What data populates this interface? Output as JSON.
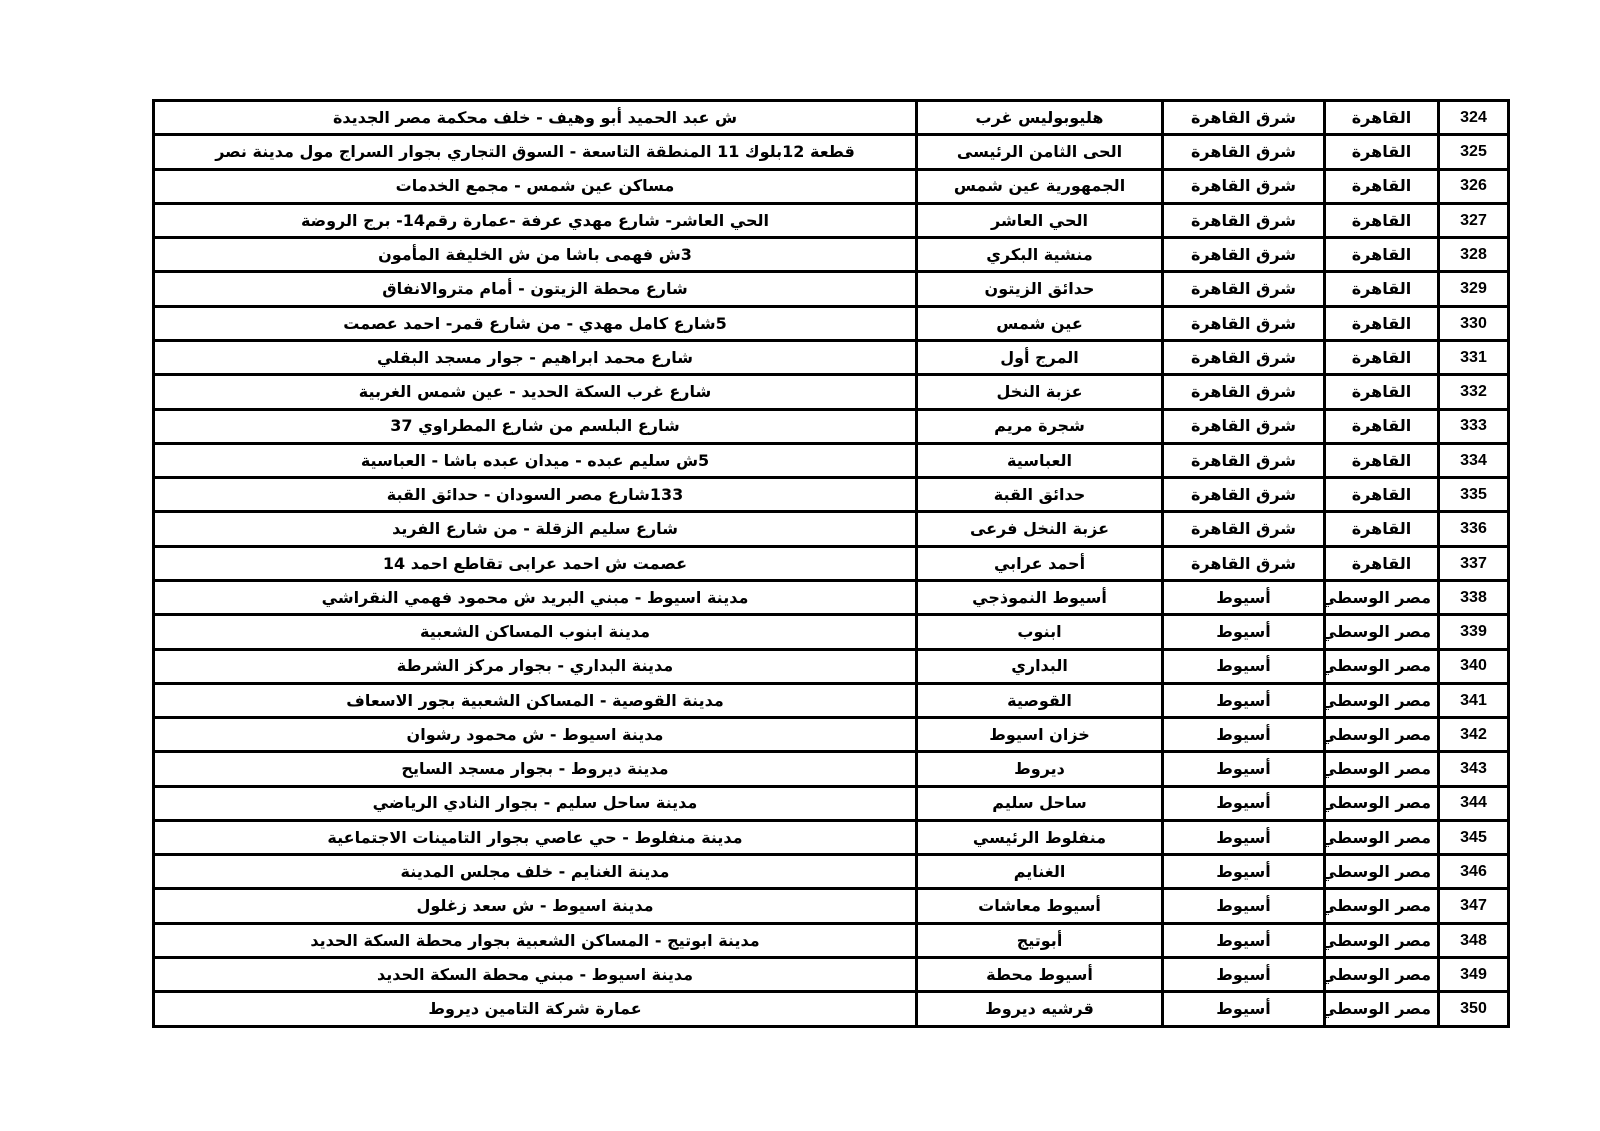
{
  "page": {
    "background": "#ffffff",
    "text_color": "#000000",
    "border_color": "#000000"
  },
  "table": {
    "column_keys": [
      "number",
      "region",
      "area",
      "district",
      "address"
    ],
    "rows": [
      {
        "number": "324",
        "region": "القاهرة",
        "area": "شرق القاهرة",
        "district": "هليوبوليس غرب",
        "address": "ش عبد الحميد أبو وهيف - خلف محكمة مصر الجديدة"
      },
      {
        "number": "325",
        "region": "القاهرة",
        "area": "شرق القاهرة",
        "district": "الحى الثامن الرئيسى",
        "address": "قطعة 12بلوك 11 المنطقة التاسعة - السوق التجاري بجوار السراج مول مدينة نصر"
      },
      {
        "number": "326",
        "region": "القاهرة",
        "area": "شرق القاهرة",
        "district": "الجمهورية  عين شمس",
        "address": "مساكن عين شمس - مجمع الخدمات"
      },
      {
        "number": "327",
        "region": "القاهرة",
        "area": "شرق القاهرة",
        "district": "الحي العاشر",
        "address": "الحي العاشر- شارع مهدي عرفة -عمارة رقم14- برج الروضة"
      },
      {
        "number": "328",
        "region": "القاهرة",
        "area": "شرق القاهرة",
        "district": "منشية البكري",
        "address": "3ش فهمى باشا من ش الخليفة المأمون"
      },
      {
        "number": "329",
        "region": "القاهرة",
        "area": "شرق القاهرة",
        "district": "حدائق الزيتون",
        "address": "شارع محطة الزيتون - أمام متروالانفاق"
      },
      {
        "number": "330",
        "region": "القاهرة",
        "area": "شرق القاهرة",
        "district": "عين شمس",
        "address": "5شارع كامل مهدي - من شارع قمر- احمد عصمت"
      },
      {
        "number": "331",
        "region": "القاهرة",
        "area": "شرق القاهرة",
        "district": "المرج أول",
        "address": "شارع محمد ابراهيم  - جوار مسجد البقلي"
      },
      {
        "number": "332",
        "region": "القاهرة",
        "area": "شرق القاهرة",
        "district": "عزبة النخل",
        "address": "شارع غرب السكة الحديد - عين شمس الغربية"
      },
      {
        "number": "333",
        "region": "القاهرة",
        "area": "شرق القاهرة",
        "district": "شجرة مريم",
        "address": "شارع البلسم من شارع المطراوي 37"
      },
      {
        "number": "334",
        "region": "القاهرة",
        "area": "شرق القاهرة",
        "district": "العباسية",
        "address": "5ش سليم عبده - ميدان عبده باشا - العباسية"
      },
      {
        "number": "335",
        "region": "القاهرة",
        "area": "شرق القاهرة",
        "district": "حدائق القبة",
        "address": "133شارع مصر السودان - حدائق القبة"
      },
      {
        "number": "336",
        "region": "القاهرة",
        "area": "شرق القاهرة",
        "district": "عزبة النخل فرعى",
        "address": "شارع سليم الزقلة - من شارع الفريد"
      },
      {
        "number": "337",
        "region": "القاهرة",
        "area": "شرق القاهرة",
        "district": "أحمد عرابي",
        "address": "عصمت ش احمد عرابى تقاطع احمد  14"
      },
      {
        "number": "338",
        "region": "مصر الوسطي",
        "area": "أسيوط",
        "district": "أسيوط النموذجي",
        "address": "مدينة اسيوط - مبني البريد ش محمود فهمي النقراشي"
      },
      {
        "number": "339",
        "region": "مصر الوسطي",
        "area": "أسيوط",
        "district": "ابنوب",
        "address": "مدينة ابنوب المساكن الشعبية"
      },
      {
        "number": "340",
        "region": "مصر الوسطي",
        "area": "أسيوط",
        "district": "البداري",
        "address": "مدينة البداري - بجوار مركز الشرطة"
      },
      {
        "number": "341",
        "region": "مصر الوسطي",
        "area": "أسيوط",
        "district": "القوصية",
        "address": "مدينة القوصية - المساكن الشعبية بجور الاسعاف"
      },
      {
        "number": "342",
        "region": "مصر الوسطي",
        "area": "أسيوط",
        "district": "خزان اسيوط",
        "address": "مدينة اسيوط - ش محمود رشوان"
      },
      {
        "number": "343",
        "region": "مصر الوسطي",
        "area": "أسيوط",
        "district": "ديروط",
        "address": "مدينة ديروط - بجوار مسجد السايح"
      },
      {
        "number": "344",
        "region": "مصر الوسطي",
        "area": "أسيوط",
        "district": "ساحل سليم",
        "address": "مدينة ساحل سليم - بجوار النادي الرياضي"
      },
      {
        "number": "345",
        "region": "مصر الوسطي",
        "area": "أسيوط",
        "district": "منفلوط الرئيسي",
        "address": "مدينة منفلوط - حي عاصي بجوار التامينات الاجتماعية"
      },
      {
        "number": "346",
        "region": "مصر الوسطي",
        "area": "أسيوط",
        "district": "الغنايم",
        "address": "مدينة الغنايم - خلف مجلس المدينة"
      },
      {
        "number": "347",
        "region": "مصر الوسطي",
        "area": "أسيوط",
        "district": "أسيوط معاشات",
        "address": "مدينة اسيوط - ش سعد زغلول"
      },
      {
        "number": "348",
        "region": "مصر الوسطي",
        "area": "أسيوط",
        "district": "أبوتيج",
        "address": "مدينة ابوتيج - المساكن الشعبية بجوار محطة السكة الحديد"
      },
      {
        "number": "349",
        "region": "مصر الوسطي",
        "area": "أسيوط",
        "district": "أسيوط محطة",
        "address": "مدينة اسيوط - مبني محطة السكة الحديد"
      },
      {
        "number": "350",
        "region": "مصر الوسطي",
        "area": "أسيوط",
        "district": "قرشيه ديروط",
        "address": "عمارة شركة التامين ديروط"
      }
    ]
  }
}
